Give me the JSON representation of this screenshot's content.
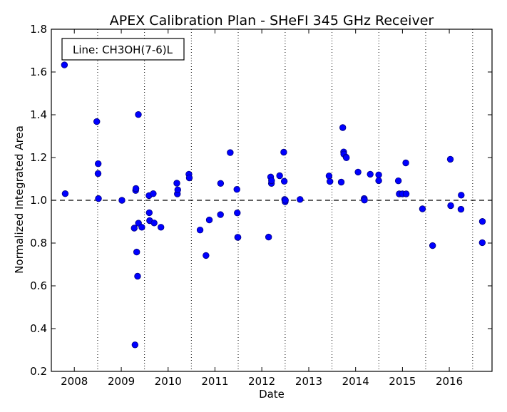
{
  "chart_data": {
    "type": "scatter",
    "title": "APEX Calibration Plan - SHeFI 345 GHz Receiver",
    "xlabel": "Date",
    "ylabel": "Normalized Integrated Area",
    "annotation": "Line: CH3OH(7-6)L",
    "xlim": [
      "2007-07-06",
      "2016-11-29"
    ],
    "ylim": [
      0.2,
      1.8
    ],
    "x_ticks": [
      {
        "label": "2008",
        "date": "2008-01-01"
      },
      {
        "label": "2009",
        "date": "2009-01-01"
      },
      {
        "label": "2010",
        "date": "2010-01-01"
      },
      {
        "label": "2011",
        "date": "2011-01-01"
      },
      {
        "label": "2012",
        "date": "2012-01-01"
      },
      {
        "label": "2013",
        "date": "2013-01-01"
      },
      {
        "label": "2014",
        "date": "2014-01-01"
      },
      {
        "label": "2015",
        "date": "2015-01-01"
      },
      {
        "label": "2016",
        "date": "2016-01-01"
      }
    ],
    "y_ticks": [
      0.2,
      0.4,
      0.6,
      0.8,
      1.0,
      1.2,
      1.4,
      1.6,
      1.8
    ],
    "y_tick_labels": [
      "0.2",
      "0.4",
      "0.6",
      "0.8",
      "1.0",
      "1.2",
      "1.4",
      "1.6",
      "1.8"
    ],
    "vertical_dotted_lines": [
      "2008-07-01",
      "2009-07-01",
      "2010-07-01",
      "2011-07-01",
      "2012-07-01",
      "2013-07-01",
      "2014-07-01",
      "2015-07-01",
      "2016-07-01"
    ],
    "reference_line_y": 1.0,
    "marker_color": "#0000ff",
    "marker_edge_color": "#000080",
    "series": [
      {
        "x": [
          "2007-10-16",
          "2007-10-22",
          "2008-06-24",
          "2008-07-05",
          "2008-07-04",
          "2008-07-07",
          "2009-01-06",
          "2009-04-12",
          "2009-04-18",
          "2009-04-23",
          "2009-04-25",
          "2009-05-01",
          "2009-05-08",
          "2009-05-15",
          "2009-05-14",
          "2009-06-10",
          "2009-08-05",
          "2009-08-07",
          "2009-08-10",
          "2009-09-07",
          "2009-09-14",
          "2009-11-06",
          "2010-03-10",
          "2010-03-14",
          "2010-03-17",
          "2010-06-12",
          "2010-06-15",
          "2010-09-07",
          "2010-10-23",
          "2010-11-18",
          "2011-02-14",
          "2011-02-13",
          "2011-04-30",
          "2011-06-21",
          "2011-06-24",
          "2011-06-27",
          "2011-06-29",
          "2012-02-23",
          "2012-03-10",
          "2012-03-16",
          "2012-03-17",
          "2012-05-19",
          "2012-06-20",
          "2012-06-24",
          "2012-06-27",
          "2012-07-01",
          "2012-07-03",
          "2012-10-25",
          "2013-06-08",
          "2013-06-15",
          "2013-09-11",
          "2013-09-23",
          "2013-09-30",
          "2013-10-01",
          "2013-10-19",
          "2013-10-21",
          "2014-01-20",
          "2014-03-09",
          "2014-03-11",
          "2014-04-25",
          "2014-06-30",
          "2014-06-30",
          "2014-11-30",
          "2014-12-07",
          "2015-01-01",
          "2015-01-27",
          "2015-01-30",
          "2015-06-06",
          "2015-08-24",
          "2016-01-09",
          "2016-01-12",
          "2016-04-03",
          "2016-04-01",
          "2016-09-14",
          "2016-09-15"
        ],
        "y": [
          1.633,
          1.031,
          1.368,
          1.171,
          1.125,
          1.008,
          1.0,
          0.87,
          0.324,
          1.046,
          1.055,
          0.758,
          0.645,
          0.893,
          1.401,
          0.874,
          1.022,
          0.942,
          0.905,
          1.031,
          0.894,
          0.874,
          1.08,
          1.03,
          1.049,
          1.122,
          1.105,
          0.861,
          0.742,
          0.908,
          1.079,
          0.933,
          1.223,
          1.051,
          0.941,
          0.827,
          0.827,
          0.828,
          1.109,
          1.079,
          1.092,
          1.115,
          1.225,
          1.089,
          1.004,
          0.993,
          1.0,
          1.004,
          1.114,
          1.088,
          1.085,
          1.34,
          1.226,
          1.216,
          1.202,
          1.199,
          1.132,
          1.008,
          1.001,
          1.122,
          1.119,
          1.092,
          1.091,
          1.03,
          1.03,
          1.175,
          1.03,
          0.96,
          0.788,
          1.192,
          0.975,
          1.024,
          0.958,
          0.802,
          0.901
        ]
      }
    ]
  }
}
